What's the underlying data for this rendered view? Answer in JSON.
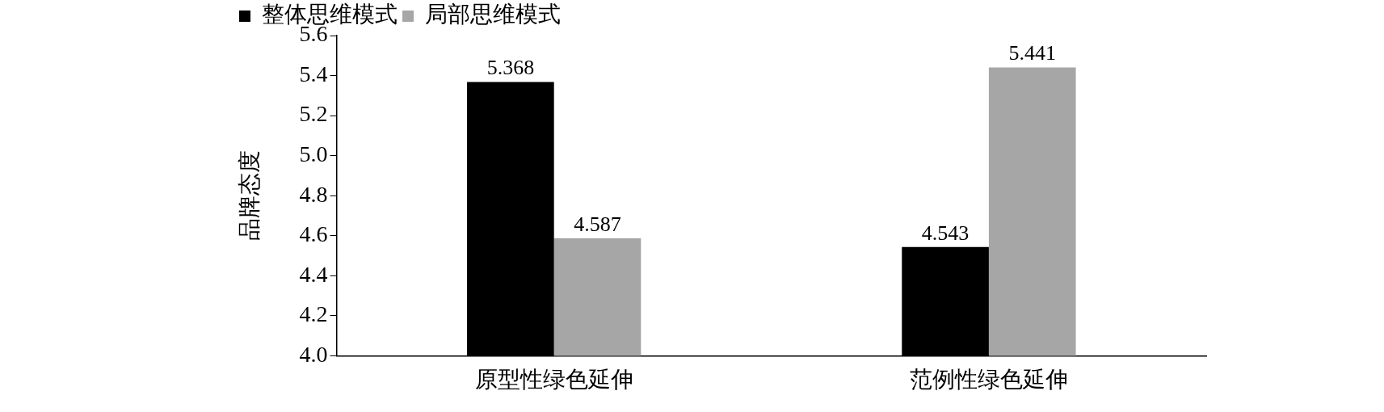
{
  "chart_data": {
    "type": "bar",
    "ylabel": "品牌态度",
    "categories": [
      "原型性绿色延伸",
      "范例性绿色延伸"
    ],
    "series": [
      {
        "name": "整体思维模式",
        "color": "#000000",
        "values": [
          5.368,
          4.543
        ]
      },
      {
        "name": "局部思维模式",
        "color": "#a6a6a6",
        "values": [
          4.587,
          5.441
        ]
      }
    ],
    "ylim": [
      4,
      5.6
    ],
    "yticks": [
      {
        "value": 4,
        "label": "4.0"
      },
      {
        "value": 4.2,
        "label": "4.2"
      },
      {
        "value": 4.4,
        "label": "4.4"
      },
      {
        "value": 4.6,
        "label": "4.6"
      },
      {
        "value": 4.8,
        "label": "4.8"
      },
      {
        "value": 5,
        "label": "5.0"
      },
      {
        "value": 5.2,
        "label": "5.2"
      },
      {
        "value": 5.4,
        "label": "5.4"
      },
      {
        "value": 5.6,
        "label": "5.6"
      }
    ],
    "data_labels": true,
    "grid": false,
    "legend": "top left"
  }
}
